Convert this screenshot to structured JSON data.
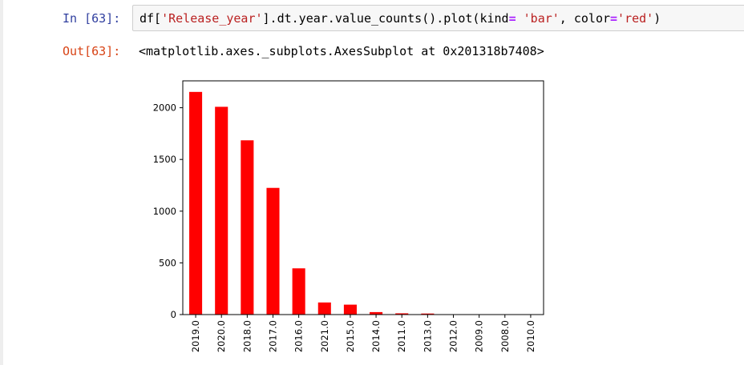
{
  "cell": {
    "in_prompt": "In [63]:",
    "out_prompt": "Out[63]:",
    "code": {
      "p1": "df[",
      "s1": "'Release_year'",
      "p2": "].dt.year.value_counts().plot(kind",
      "op1": "=",
      "p3": " ",
      "s2": "'bar'",
      "p4": ", color",
      "op2": "=",
      "s3": "'red'",
      "p5": ")"
    },
    "output_text": "<matplotlib.axes._subplots.AxesSubplot at 0x201318b7408>"
  },
  "chart_data": {
    "type": "bar",
    "color": "#ff0000",
    "categories": [
      "2019.0",
      "2020.0",
      "2018.0",
      "2017.0",
      "2016.0",
      "2021.0",
      "2015.0",
      "2014.0",
      "2011.0",
      "2013.0",
      "2012.0",
      "2009.0",
      "2008.0",
      "2010.0"
    ],
    "values": [
      2153,
      2009,
      1685,
      1225,
      447,
      117,
      96,
      24,
      12,
      10,
      3,
      2,
      2,
      1
    ],
    "yticks": [
      0,
      500,
      1000,
      1500,
      2000
    ],
    "ylim": [
      0,
      2260
    ],
    "title": "",
    "xlabel": "",
    "ylabel": "",
    "grid": false
  }
}
